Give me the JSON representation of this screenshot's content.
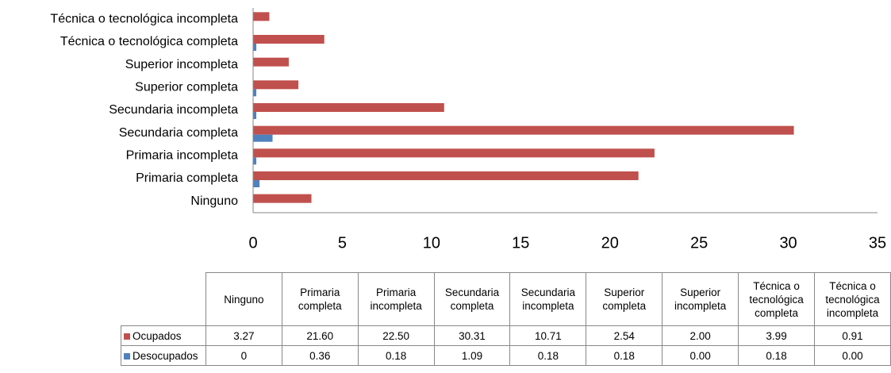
{
  "chart_data": {
    "type": "bar",
    "orientation": "horizontal",
    "categories": [
      "Ninguno",
      "Primaria completa",
      "Primaria incompleta",
      "Secundaria completa",
      "Secundaria incompleta",
      "Superior completa",
      "Superior incompleta",
      "Técnica o tecnológica completa",
      "Técnica o tecnológica incompleta"
    ],
    "series": [
      {
        "name": "Ocupados",
        "color": "#c0504d",
        "values": [
          3.27,
          21.6,
          22.5,
          30.31,
          10.71,
          2.54,
          2,
          3.99,
          0.91
        ],
        "value_labels": [
          "3.27",
          "21.60",
          "22.50",
          "30.31",
          "10.71",
          "2.54",
          "2.00",
          "3.99",
          "0.91"
        ]
      },
      {
        "name": "Desocupados",
        "color": "#4f81bd",
        "values": [
          0,
          0.36,
          0.18,
          1.09,
          0.18,
          0.18,
          0,
          0.18,
          0
        ],
        "value_labels": [
          "0",
          "0.36",
          "0.18",
          "1.09",
          "0.18",
          "0.18",
          "0.00",
          "0.18",
          "0.00"
        ]
      }
    ],
    "xlim": [
      0,
      35
    ],
    "xticks": [
      0,
      5,
      10,
      15,
      20,
      25,
      30,
      35
    ],
    "grid": false,
    "data_table": true
  }
}
